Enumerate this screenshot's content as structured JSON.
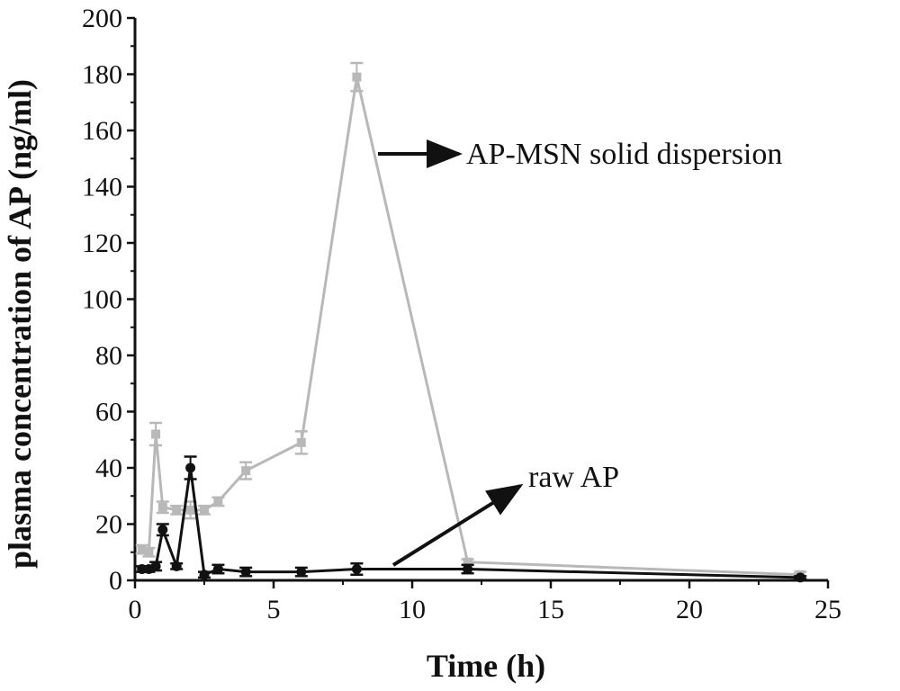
{
  "chart_data": {
    "type": "line",
    "title": "",
    "xlabel": "Time (h)",
    "ylabel": "plasma concentration of AP (ng/ml)",
    "xlim": [
      0,
      25
    ],
    "ylim": [
      0,
      200
    ],
    "xticks": [
      0,
      5,
      10,
      15,
      20,
      25
    ],
    "yticks": [
      0,
      20,
      40,
      60,
      80,
      100,
      120,
      140,
      160,
      180,
      200
    ],
    "grid": false,
    "legend": "none",
    "series": [
      {
        "name": "AP-MSN solid dispersion",
        "color": "#b8b8b8",
        "marker": "square",
        "x": [
          0.25,
          0.5,
          0.75,
          1,
          1.5,
          2,
          2.5,
          3,
          4,
          6,
          8,
          12,
          24
        ],
        "y": [
          11,
          10,
          52,
          26,
          25,
          25,
          25,
          28,
          39,
          49,
          179,
          6.5,
          2
        ],
        "err": [
          1.5,
          1.5,
          4,
          2,
          1.5,
          3,
          1.5,
          1.5,
          3,
          4,
          5,
          1,
          1
        ]
      },
      {
        "name": "raw AP",
        "color": "#111111",
        "marker": "circle",
        "x": [
          0.25,
          0.5,
          0.75,
          1,
          1.5,
          2,
          2.5,
          3,
          4,
          6,
          8,
          12,
          24
        ],
        "y": [
          4,
          4,
          5,
          18,
          5,
          40,
          2,
          4,
          3,
          3,
          4,
          4,
          1
        ],
        "err": [
          1,
          1,
          1.5,
          2,
          1,
          4,
          1,
          1.5,
          1.5,
          1.5,
          2,
          1.5,
          0.5
        ]
      }
    ],
    "annotations": [
      {
        "text": "AP-MSN solid dispersion",
        "series": "AP-MSN solid dispersion"
      },
      {
        "text": "raw AP",
        "series": "raw AP"
      }
    ]
  }
}
